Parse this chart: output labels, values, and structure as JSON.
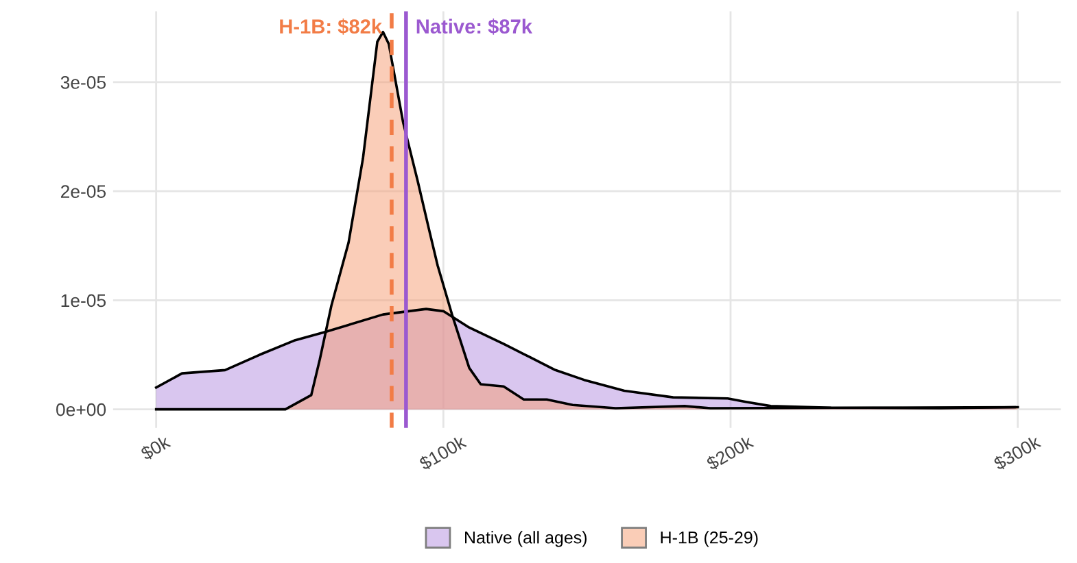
{
  "chart_data": {
    "type": "area",
    "legend": "bottom",
    "grid": true,
    "xlim": [
      -15000,
      315000
    ],
    "ylim": [
      -1.7e-06,
      3.65e-05
    ],
    "xticks": [
      {
        "value": 0,
        "label": "$0k"
      },
      {
        "value": 100000,
        "label": "$100k"
      },
      {
        "value": 200000,
        "label": "$200k"
      },
      {
        "value": 300000,
        "label": "$300k"
      }
    ],
    "yticks": [
      {
        "value": 0,
        "label": "0e+00"
      },
      {
        "value": 1e-05,
        "label": "1e-05"
      },
      {
        "value": 2e-05,
        "label": "2e-05"
      },
      {
        "value": 3e-05,
        "label": "3e-05"
      }
    ],
    "series": [
      {
        "name": "Native (all ages)",
        "color": "#b48ee0",
        "x": [
          0,
          9000,
          24000,
          36000,
          48000,
          59000,
          79000,
          94000,
          100000,
          109000,
          121000,
          130000,
          139000,
          149000,
          163000,
          180000,
          199000,
          205000,
          214000,
          235000,
          273000,
          299000
        ],
        "values": [
          2e-06,
          3.3e-06,
          3.6e-06,
          5e-06,
          6.3e-06,
          7.1e-06,
          8.7e-06,
          9.2e-06,
          9e-06,
          7.5e-06,
          6e-06,
          4.8e-06,
          3.6e-06,
          2.7e-06,
          1.7e-06,
          1.1e-06,
          1e-06,
          7e-07,
          3e-07,
          1.5e-07,
          1e-07,
          2e-07
        ]
      },
      {
        "name": "H-1B (25-29)",
        "color": "#f69c72",
        "x": [
          0,
          45000,
          54000,
          57000,
          61000,
          67000,
          72000,
          77000,
          79000,
          81000,
          86000,
          91000,
          95000,
          98000,
          103000,
          109000,
          113000,
          121000,
          128000,
          136000,
          145000,
          160000,
          184000,
          193000,
          300000
        ],
        "values": [
          0,
          0,
          1.3e-06,
          4.6e-06,
          9.5e-06,
          1.53e-05,
          2.3e-05,
          3.37e-05,
          3.46e-05,
          3.35e-05,
          2.63e-05,
          2.1e-05,
          1.65e-05,
          1.32e-05,
          8.7e-06,
          3.8e-06,
          2.3e-06,
          2.1e-06,
          9e-07,
          9e-07,
          4e-07,
          1e-07,
          3e-07,
          1e-07,
          2e-07
        ]
      }
    ],
    "ref_lines": [
      {
        "axis": "x",
        "value": 82000,
        "label": "H-1B: $82k",
        "color": "#f27c46",
        "line_style": "dashed"
      },
      {
        "axis": "x",
        "value": 87000,
        "label": "Native: $87k",
        "color": "#9b59d0",
        "line_style": "solid"
      }
    ]
  }
}
